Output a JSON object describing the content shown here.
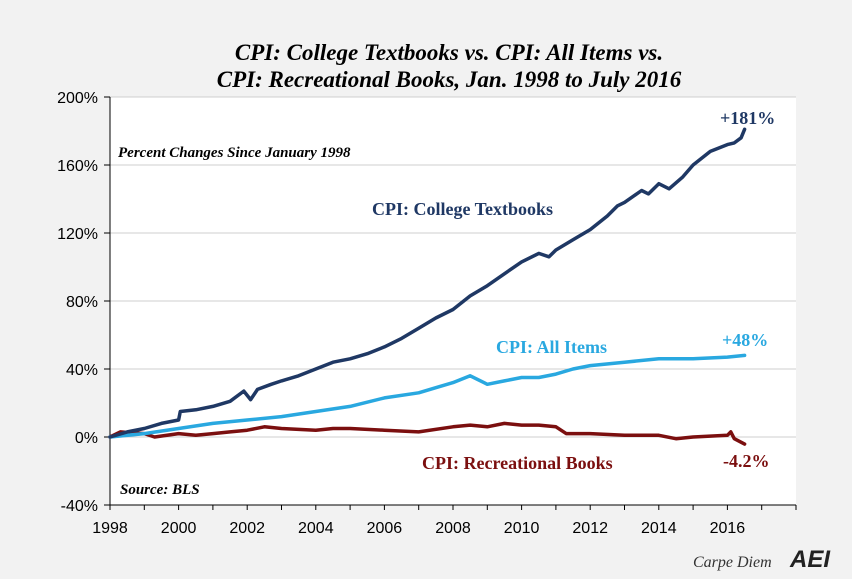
{
  "chart_data": {
    "type": "line",
    "title_line1": "CPI: College Textbooks vs. CPI: All Items vs.",
    "title_line2": "CPI: Recreational Books, Jan. 1998 to July 2016",
    "subtitle": "Percent Changes Since January 1998",
    "source": "Source: BLS",
    "xlabel": "",
    "ylabel": "",
    "xlim": [
      1998,
      2018
    ],
    "ylim": [
      -40,
      200
    ],
    "x_ticks": [
      1998,
      2000,
      2002,
      2004,
      2006,
      2008,
      2010,
      2012,
      2014,
      2016
    ],
    "y_ticks": [
      -40,
      0,
      40,
      80,
      120,
      160,
      200
    ],
    "y_tick_labels": [
      "-40%",
      "0%",
      "40%",
      "80%",
      "120%",
      "160%",
      "200%"
    ],
    "grid": "horizontal",
    "series": [
      {
        "name": "CPI: College Textbooks",
        "color": "#1f3864",
        "end_label": "+181%",
        "points": [
          [
            1998.0,
            0
          ],
          [
            1998.5,
            3
          ],
          [
            1999.0,
            5
          ],
          [
            1999.5,
            8
          ],
          [
            2000.0,
            10
          ],
          [
            2000.05,
            15
          ],
          [
            2000.5,
            16
          ],
          [
            2001.0,
            18
          ],
          [
            2001.5,
            21
          ],
          [
            2001.9,
            27
          ],
          [
            2002.1,
            22
          ],
          [
            2002.3,
            28
          ],
          [
            2002.7,
            31
          ],
          [
            2003.0,
            33
          ],
          [
            2003.5,
            36
          ],
          [
            2004.0,
            40
          ],
          [
            2004.5,
            44
          ],
          [
            2005.0,
            46
          ],
          [
            2005.5,
            49
          ],
          [
            2006.0,
            53
          ],
          [
            2006.5,
            58
          ],
          [
            2007.0,
            64
          ],
          [
            2007.5,
            70
          ],
          [
            2008.0,
            75
          ],
          [
            2008.5,
            83
          ],
          [
            2009.0,
            89
          ],
          [
            2009.5,
            96
          ],
          [
            2010.0,
            103
          ],
          [
            2010.5,
            108
          ],
          [
            2010.8,
            106
          ],
          [
            2011.0,
            110
          ],
          [
            2011.5,
            116
          ],
          [
            2012.0,
            122
          ],
          [
            2012.5,
            130
          ],
          [
            2012.8,
            136
          ],
          [
            2013.0,
            138
          ],
          [
            2013.5,
            145
          ],
          [
            2013.7,
            143
          ],
          [
            2014.0,
            149
          ],
          [
            2014.3,
            146
          ],
          [
            2014.7,
            153
          ],
          [
            2015.0,
            160
          ],
          [
            2015.5,
            168
          ],
          [
            2016.0,
            172
          ],
          [
            2016.2,
            173
          ],
          [
            2016.4,
            176
          ],
          [
            2016.5,
            181
          ]
        ]
      },
      {
        "name": "CPI: All Items",
        "color": "#29a8e0",
        "end_label": "+48%",
        "points": [
          [
            1998.0,
            0
          ],
          [
            1999.0,
            2
          ],
          [
            2000.0,
            5
          ],
          [
            2001.0,
            8
          ],
          [
            2002.0,
            10
          ],
          [
            2003.0,
            12
          ],
          [
            2004.0,
            15
          ],
          [
            2005.0,
            18
          ],
          [
            2006.0,
            23
          ],
          [
            2007.0,
            26
          ],
          [
            2007.5,
            29
          ],
          [
            2008.0,
            32
          ],
          [
            2008.5,
            36
          ],
          [
            2008.9,
            32
          ],
          [
            2009.0,
            31
          ],
          [
            2009.5,
            33
          ],
          [
            2010.0,
            35
          ],
          [
            2010.5,
            35
          ],
          [
            2011.0,
            37
          ],
          [
            2011.5,
            40
          ],
          [
            2012.0,
            42
          ],
          [
            2013.0,
            44
          ],
          [
            2014.0,
            46
          ],
          [
            2015.0,
            46
          ],
          [
            2016.0,
            47
          ],
          [
            2016.5,
            48
          ]
        ]
      },
      {
        "name": "CPI: Recreational Books",
        "color": "#7b0f0f",
        "end_label": "-4.2%",
        "points": [
          [
            1998.0,
            0
          ],
          [
            1998.3,
            3
          ],
          [
            1999.0,
            2
          ],
          [
            1999.3,
            0
          ],
          [
            2000.0,
            2
          ],
          [
            2000.5,
            1
          ],
          [
            2001.0,
            2
          ],
          [
            2001.5,
            3
          ],
          [
            2002.0,
            4
          ],
          [
            2002.5,
            6
          ],
          [
            2003.0,
            5
          ],
          [
            2004.0,
            4
          ],
          [
            2004.5,
            5
          ],
          [
            2005.0,
            5
          ],
          [
            2006.0,
            4
          ],
          [
            2007.0,
            3
          ],
          [
            2008.0,
            6
          ],
          [
            2008.5,
            7
          ],
          [
            2009.0,
            6
          ],
          [
            2009.5,
            8
          ],
          [
            2010.0,
            7
          ],
          [
            2010.5,
            7
          ],
          [
            2011.0,
            6
          ],
          [
            2011.3,
            2
          ],
          [
            2012.0,
            2
          ],
          [
            2013.0,
            1
          ],
          [
            2014.0,
            1
          ],
          [
            2014.5,
            -1
          ],
          [
            2015.0,
            0
          ],
          [
            2016.0,
            1
          ],
          [
            2016.1,
            3
          ],
          [
            2016.2,
            -1
          ],
          [
            2016.5,
            -4.2
          ]
        ]
      }
    ]
  },
  "branding": {
    "blog": "Carpe Diem",
    "logo": "AEI"
  }
}
